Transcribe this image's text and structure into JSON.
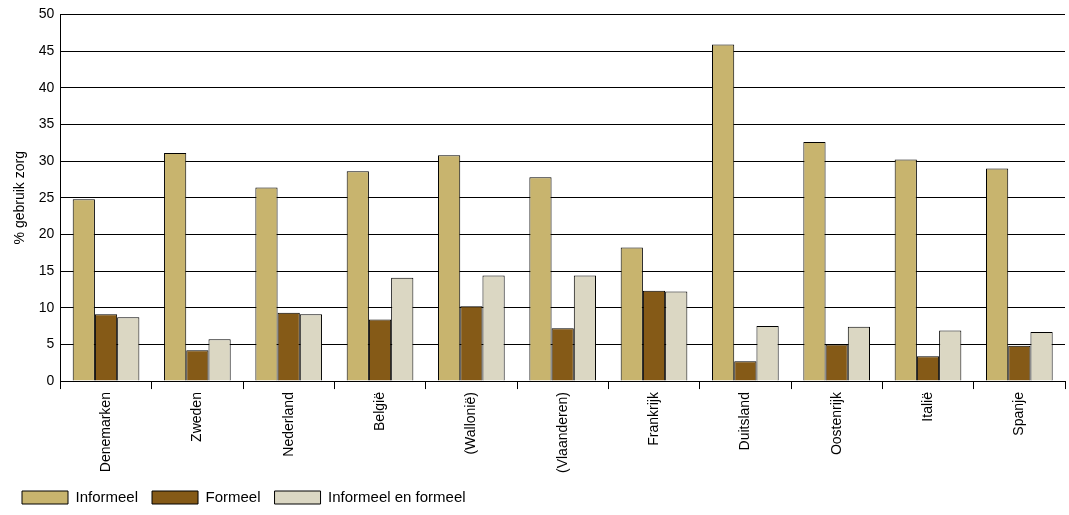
{
  "chart_data": {
    "type": "bar",
    "ylabel": "% gebruik zorg",
    "categories": [
      "Denemarken",
      "Zweden",
      "Nederland",
      "België",
      "(Wallonië)",
      "(Vlaanderen)",
      "Frankrijk",
      "Duitsland",
      "Oostenrijk",
      "Italië",
      "Spanje"
    ],
    "series": [
      {
        "name": "Informeel",
        "color": "#c8b46e",
        "values": [
          24.8,
          31.1,
          26.4,
          28.6,
          30.8,
          27.8,
          18.2,
          45.9,
          32.6,
          30.2,
          29.0
        ]
      },
      {
        "name": "Formeel",
        "color": "#855a17",
        "values": [
          9.1,
          4.2,
          9.3,
          8.4,
          10.2,
          7.2,
          12.3,
          2.7,
          5.0,
          3.4,
          4.8
        ]
      },
      {
        "name": "Informeel en formeel",
        "color": "#dbd7c3",
        "values": [
          8.7,
          5.7,
          9.1,
          14.1,
          14.4,
          14.4,
          12.2,
          7.5,
          7.4,
          6.9,
          6.7
        ]
      }
    ],
    "ylim": [
      0,
      50
    ],
    "yticks": [
      0,
      5,
      10,
      15,
      20,
      25,
      30,
      35,
      40,
      45,
      50
    ],
    "grid": "y",
    "legend": "bottom left"
  }
}
